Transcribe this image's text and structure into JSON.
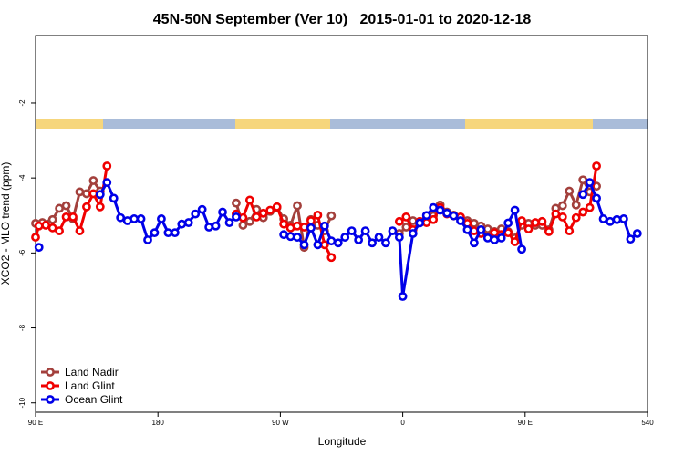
{
  "chart_data": {
    "type": "line",
    "title": "45N-50N September (Ver 10)   2015-01-01 to 2020-12-18",
    "x_label": "Longitude",
    "y_label": "XCO2 - MLO trend (ppm)",
    "xlim": [
      90,
      540
    ],
    "xticks": [
      {
        "value": 90,
        "label": "90 E"
      },
      180,
      {
        "value": 270,
        "label": "90 W"
      },
      {
        "value": 360,
        "label": "0"
      },
      {
        "value": 450,
        "label": "90 E"
      },
      540
    ],
    "ylim": [
      -10.25,
      -0.2
    ],
    "yticks": [
      -10,
      -8,
      -6,
      -4,
      -2
    ],
    "grid": false,
    "legend": "lower left",
    "series": [
      {
        "name": "Land Nadir",
        "color": "#a3403c",
        "x": [
          90,
          95,
          102.5,
          107.5,
          112.5,
          117.5,
          122.5,
          127.5,
          132.5,
          137.5,
          190,
          237.5,
          242.5,
          247.5,
          252.5,
          257.5,
          262.5,
          267.5,
          272.5,
          277.5,
          282.5,
          287.5,
          292.5,
          297.5,
          302.5,
          307.5,
          332.5,
          357.5,
          362.5,
          367.5,
          372.5,
          377.5,
          382.5,
          387.5,
          392.5,
          397.5,
          402.5,
          407.5,
          412.5,
          417.5,
          422.5,
          427.5,
          432.5,
          437.5,
          442.5,
          447.5,
          452.5,
          457.5,
          462.5,
          467.5,
          472.5,
          477.5,
          482.5,
          487.5,
          492.5,
          497.5,
          502.5
        ],
        "values": [
          -5.21,
          -5.19,
          -5.11,
          -4.81,
          -4.74,
          -5.09,
          -4.37,
          -4.42,
          -4.07,
          -4.35,
          null,
          -4.67,
          -5.26,
          -5.16,
          -4.84,
          -5.06,
          -4.89,
          -4.79,
          -5.09,
          -5.26,
          -4.74,
          -5.85,
          -5.11,
          -5.26,
          -5.41,
          -5.01,
          null,
          -5.48,
          -5.31,
          -5.14,
          -5.19,
          -5.06,
          -5.01,
          -4.72,
          -4.91,
          -4.99,
          -5.09,
          -5.14,
          -5.21,
          -5.28,
          -5.36,
          -5.43,
          -5.36,
          -5.43,
          -5.6,
          -5.26,
          -5.21,
          -5.26,
          -5.26,
          -5.38,
          -4.81,
          -4.74,
          -4.35,
          -4.72,
          -4.05,
          -4.37,
          -4.22
        ]
      },
      {
        "name": "Land Glint",
        "color": "#f00000",
        "x": [
          90,
          92.5,
          97.5,
          102.5,
          107.5,
          112.5,
          117.5,
          122.5,
          127.5,
          132.5,
          137.5,
          142.5,
          190,
          237.5,
          242.5,
          247.5,
          252.5,
          257.5,
          262.5,
          267.5,
          272.5,
          277.5,
          282.5,
          287.5,
          292.5,
          297.5,
          302.5,
          307.5,
          332.5,
          357.5,
          362.5,
          367.5,
          372.5,
          377.5,
          382.5,
          387.5,
          392.5,
          397.5,
          402.5,
          407.5,
          412.5,
          417.5,
          422.5,
          427.5,
          432.5,
          437.5,
          442.5,
          447.5,
          452.5,
          457.5,
          462.5,
          467.5,
          472.5,
          477.5,
          482.5,
          487.5,
          492.5,
          497.5,
          502.5
        ],
        "values": [
          -5.58,
          -5.28,
          -5.26,
          -5.33,
          -5.41,
          -5.04,
          -5.04,
          -5.41,
          -4.77,
          -4.42,
          -4.77,
          -3.68,
          null,
          -4.96,
          -5.06,
          -4.59,
          -5.04,
          -4.94,
          -4.86,
          -4.77,
          -5.23,
          -5.33,
          -5.28,
          -5.31,
          -5.14,
          -4.99,
          -5.78,
          -6.12,
          null,
          -5.16,
          -5.04,
          -5.38,
          -5.16,
          -5.19,
          -5.11,
          -4.79,
          -4.96,
          -5.01,
          -5.04,
          -5.21,
          -5.41,
          -5.48,
          -5.58,
          -5.46,
          -5.51,
          -5.46,
          -5.7,
          -5.14,
          -5.36,
          -5.19,
          -5.16,
          -5.43,
          -4.96,
          -5.04,
          -5.41,
          -5.06,
          -4.91,
          -4.79,
          -3.68
        ]
      },
      {
        "name": "Ocean Glint",
        "color": "#0000e8",
        "x": [
          92.5,
          115,
          137.5,
          142.5,
          147.5,
          152.5,
          157.5,
          162.5,
          167.5,
          172.5,
          177.5,
          182.5,
          187.5,
          192.5,
          197.5,
          202.5,
          207.5,
          212.5,
          217.5,
          222.5,
          227.5,
          232.5,
          237.5,
          255,
          272.5,
          277.5,
          282.5,
          287.5,
          292.5,
          297.5,
          302.5,
          307.5,
          312.5,
          317.5,
          322.5,
          327.5,
          332.5,
          337.5,
          342.5,
          347.5,
          352.5,
          357.5,
          360,
          367.5,
          372.5,
          377.5,
          382.5,
          387.5,
          392.5,
          397.5,
          402.5,
          407.5,
          412.5,
          417.5,
          422.5,
          427.5,
          432.5,
          437.5,
          442.5,
          447.5,
          470,
          492.5,
          497.5,
          502.5,
          507.5,
          512.5,
          517.5,
          522.5,
          527.5,
          532.5
        ],
        "values": [
          -5.85,
          null,
          -4.44,
          -4.12,
          -4.54,
          -5.06,
          -5.14,
          -5.09,
          -5.09,
          -5.65,
          -5.46,
          -5.09,
          -5.46,
          -5.46,
          -5.23,
          -5.19,
          -4.96,
          -4.84,
          -5.31,
          -5.28,
          -4.91,
          -5.19,
          -5.04,
          null,
          -5.51,
          -5.56,
          -5.58,
          -5.78,
          -5.33,
          -5.78,
          -5.28,
          -5.68,
          -5.73,
          -5.58,
          -5.41,
          -5.65,
          -5.41,
          -5.73,
          -5.58,
          -5.73,
          -5.41,
          -5.58,
          -7.16,
          -5.48,
          -5.2,
          -5.0,
          -4.79,
          -4.86,
          -4.94,
          -5.01,
          -5.14,
          -5.38,
          -5.73,
          -5.38,
          -5.6,
          -5.65,
          -5.6,
          -5.2,
          -4.86,
          -5.9,
          null,
          -4.44,
          -4.12,
          -4.54,
          -5.09,
          -5.16,
          -5.11,
          -5.09,
          -5.63,
          -5.48
        ]
      }
    ]
  }
}
